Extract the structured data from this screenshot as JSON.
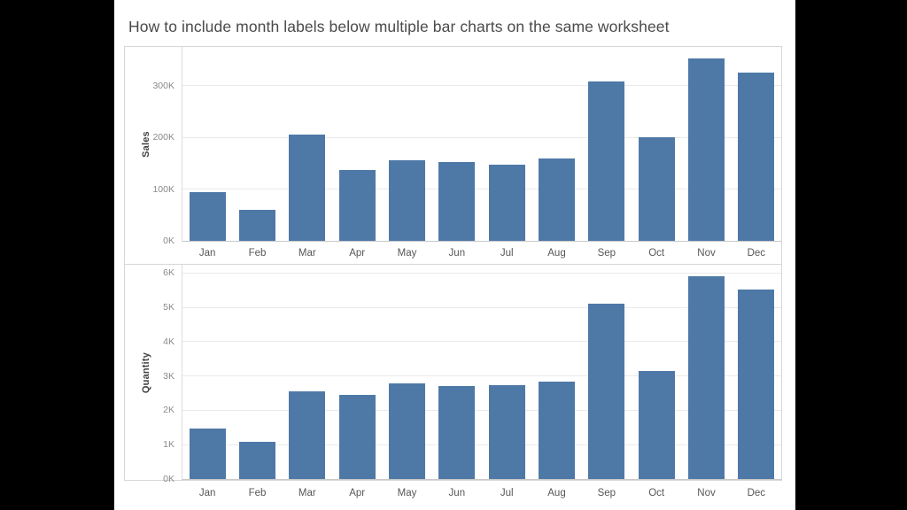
{
  "title": "How to include month labels below multiple bar charts on the same worksheet",
  "colors": {
    "bar": "#4e79a7",
    "gridline": "#eaeaea",
    "axis_line": "#dcdcdc",
    "baseline": "#c9c9c9",
    "frame_border": "#d7d7d7",
    "tick_label": "#8a8a8a",
    "month_label": "#575757",
    "field_label": "#424242",
    "title_text": "#4a4a4a",
    "letterbox": "#000000",
    "background": "#ffffff"
  },
  "months": [
    "Jan",
    "Feb",
    "Mar",
    "Apr",
    "May",
    "Jun",
    "Jul",
    "Aug",
    "Sep",
    "Oct",
    "Nov",
    "Dec"
  ],
  "chart_data": [
    {
      "type": "bar",
      "ylabel": "Sales",
      "categories": [
        "Jan",
        "Feb",
        "Mar",
        "Apr",
        "May",
        "Jun",
        "Jul",
        "Aug",
        "Sep",
        "Oct",
        "Nov",
        "Dec"
      ],
      "values": [
        94900,
        59800,
        205000,
        137800,
        155000,
        152800,
        147200,
        159000,
        307600,
        200300,
        352500,
        325300
      ],
      "ytick_labels": [
        "0K",
        "100K",
        "200K",
        "300K"
      ],
      "ytick_values": [
        0,
        100000,
        200000,
        300000
      ],
      "ylim": [
        0,
        375000
      ],
      "grid": true,
      "legend": false
    },
    {
      "type": "bar",
      "ylabel": "Quantity",
      "categories": [
        "Jan",
        "Feb",
        "Mar",
        "Apr",
        "May",
        "Jun",
        "Jul",
        "Aug",
        "Sep",
        "Oct",
        "Nov",
        "Dec"
      ],
      "values": [
        1470,
        1090,
        2560,
        2460,
        2790,
        2710,
        2730,
        2830,
        5110,
        3140,
        5900,
        5510
      ],
      "ytick_labels": [
        "0K",
        "1K",
        "2K",
        "3K",
        "4K",
        "5K",
        "6K"
      ],
      "ytick_values": [
        0,
        1000,
        2000,
        3000,
        4000,
        5000,
        6000
      ],
      "ylim": [
        0,
        6240
      ],
      "grid": true,
      "legend": false
    }
  ]
}
